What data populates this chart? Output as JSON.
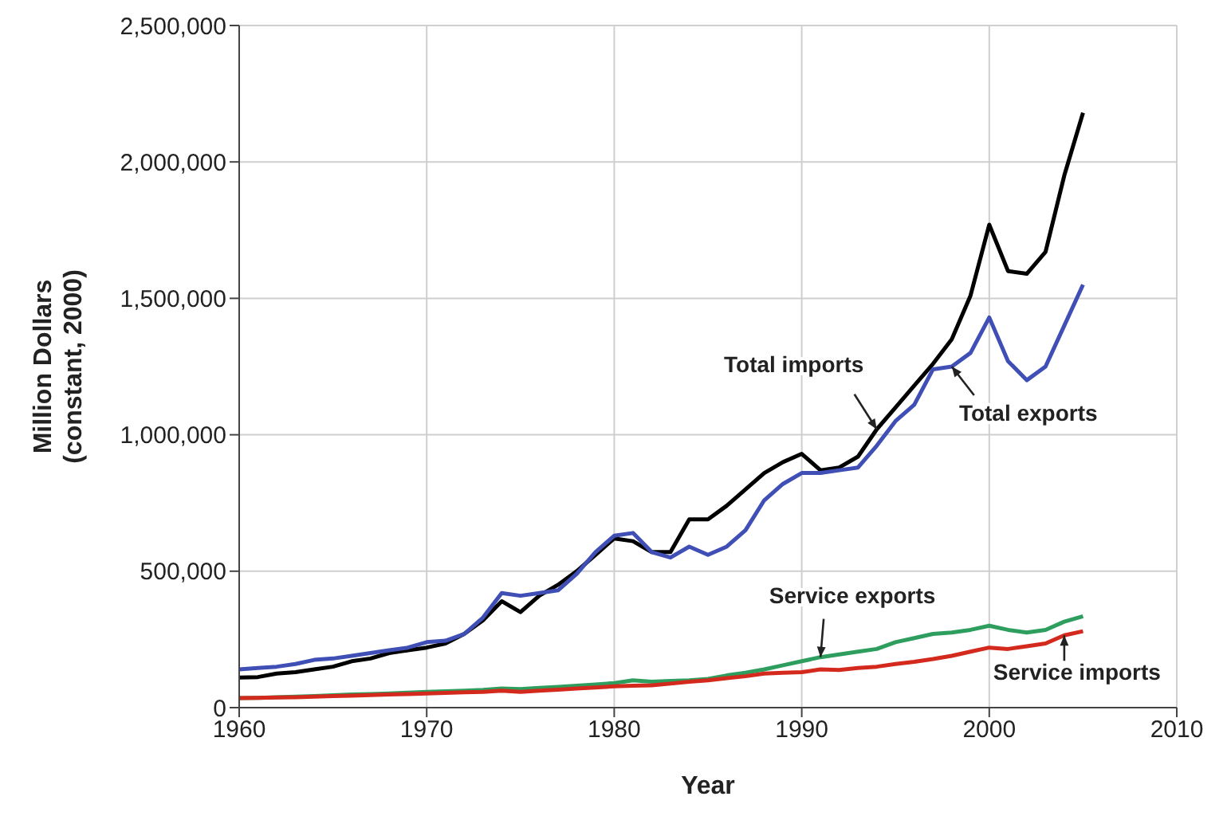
{
  "chart_data": {
    "type": "line",
    "xlabel": "Year",
    "ylabel": "Million Dollars\n(constant, 2000)",
    "x": [
      1960,
      1961,
      1962,
      1963,
      1964,
      1965,
      1966,
      1967,
      1968,
      1969,
      1970,
      1971,
      1972,
      1973,
      1974,
      1975,
      1976,
      1977,
      1978,
      1979,
      1980,
      1981,
      1982,
      1983,
      1984,
      1985,
      1986,
      1987,
      1988,
      1989,
      1990,
      1991,
      1992,
      1993,
      1994,
      1995,
      1996,
      1997,
      1998,
      1999,
      2000,
      2001,
      2002,
      2003,
      2004,
      2005
    ],
    "series": [
      {
        "name": "Total imports",
        "color": "#000000",
        "values": [
          110000,
          112000,
          125000,
          130000,
          140000,
          150000,
          170000,
          180000,
          200000,
          210000,
          220000,
          235000,
          270000,
          320000,
          390000,
          350000,
          410000,
          450000,
          500000,
          560000,
          620000,
          610000,
          570000,
          570000,
          690000,
          690000,
          740000,
          800000,
          860000,
          900000,
          930000,
          870000,
          880000,
          920000,
          1020000,
          1100000,
          1180000,
          1260000,
          1350000,
          1510000,
          1770000,
          1600000,
          1590000,
          1670000,
          1950000,
          2180000
        ]
      },
      {
        "name": "Total exports",
        "color": "#3f4fb5",
        "values": [
          140000,
          145000,
          150000,
          160000,
          175000,
          180000,
          190000,
          200000,
          210000,
          220000,
          240000,
          245000,
          270000,
          330000,
          420000,
          410000,
          420000,
          430000,
          490000,
          570000,
          630000,
          640000,
          570000,
          550000,
          590000,
          560000,
          590000,
          650000,
          760000,
          820000,
          860000,
          860000,
          870000,
          880000,
          960000,
          1050000,
          1110000,
          1240000,
          1250000,
          1300000,
          1430000,
          1270000,
          1200000,
          1250000,
          1400000,
          1550000
        ]
      },
      {
        "name": "Service exports",
        "color": "#2e9e5e",
        "values": [
          35000,
          36000,
          38000,
          40000,
          42000,
          45000,
          48000,
          50000,
          52000,
          55000,
          58000,
          60000,
          62000,
          65000,
          70000,
          68000,
          72000,
          76000,
          80000,
          85000,
          90000,
          100000,
          95000,
          98000,
          100000,
          105000,
          118000,
          128000,
          140000,
          155000,
          170000,
          185000,
          195000,
          205000,
          215000,
          240000,
          255000,
          270000,
          275000,
          285000,
          300000,
          285000,
          275000,
          285000,
          315000,
          335000
        ]
      },
      {
        "name": "Service imports",
        "color": "#d42a1e",
        "values": [
          35000,
          36000,
          37000,
          38000,
          40000,
          42000,
          44000,
          46000,
          48000,
          50000,
          52000,
          54000,
          56000,
          58000,
          62000,
          58000,
          62000,
          66000,
          70000,
          74000,
          78000,
          80000,
          82000,
          88000,
          95000,
          100000,
          108000,
          115000,
          125000,
          128000,
          130000,
          140000,
          138000,
          145000,
          150000,
          160000,
          168000,
          178000,
          190000,
          205000,
          220000,
          215000,
          225000,
          235000,
          265000,
          280000
        ]
      }
    ],
    "xlim": [
      1960,
      2010
    ],
    "xticks": [
      1960,
      1970,
      1980,
      1990,
      2000,
      2010
    ],
    "ylim": [
      0,
      2500000
    ],
    "yticks": [
      0,
      {
        "value": 500000,
        "label": "500,000"
      },
      {
        "value": 1000000,
        "label": "1,000,000"
      },
      {
        "value": 1500000,
        "label": "1,500,000"
      },
      {
        "value": 2000000,
        "label": "2,000,000"
      },
      {
        "value": 2500000,
        "label": "2,500,000"
      }
    ],
    "grid": true,
    "legend": false,
    "marker": "none",
    "line_style": "solid"
  }
}
